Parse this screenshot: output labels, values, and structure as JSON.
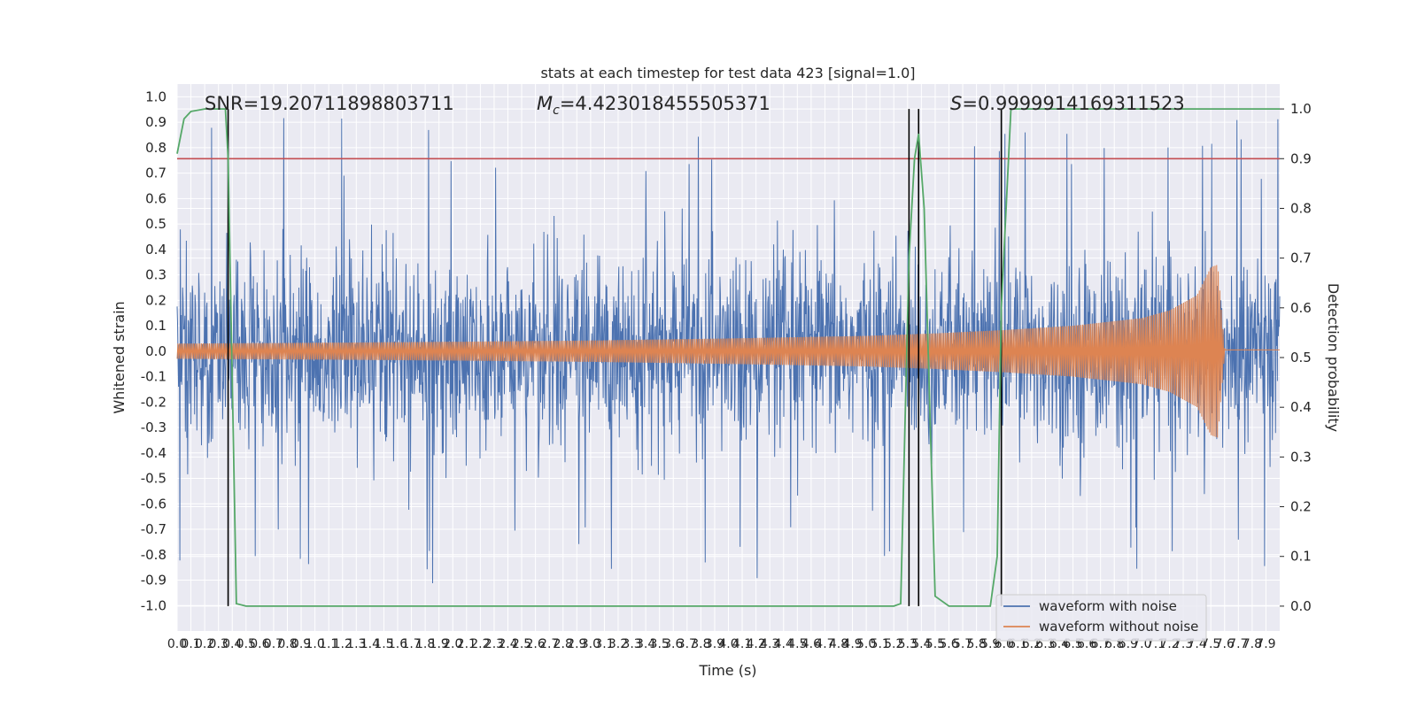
{
  "chart_data": {
    "type": "line",
    "title": "stats at each timestep for test data 423 [signal=1.0]",
    "xlabel": "Time (s)",
    "ylabel": "Whitened strain",
    "y2label": "Detection probability",
    "xlim": [
      0.0,
      8.0
    ],
    "ylim": [
      -1.1,
      1.05
    ],
    "y2lim": [
      -0.05,
      1.05
    ],
    "grid": true,
    "x_ticks": [
      "0.0",
      "0.1",
      "0.2",
      "0.3",
      "0.4",
      "0.5",
      "0.6",
      "0.7",
      "0.8",
      "0.9",
      "1.0",
      "1.1",
      "1.2",
      "1.3",
      "1.4",
      "1.5",
      "1.6",
      "1.7",
      "1.8",
      "1.9",
      "2.0",
      "2.1",
      "2.2",
      "2.3",
      "2.4",
      "2.5",
      "2.6",
      "2.7",
      "2.8",
      "2.9",
      "3.0",
      "3.1",
      "3.2",
      "3.3",
      "3.4",
      "3.5",
      "3.6",
      "3.7",
      "3.8",
      "3.9",
      "4.0",
      "4.1",
      "4.2",
      "4.3",
      "4.4",
      "4.5",
      "4.6",
      "4.7",
      "4.8",
      "4.9",
      "5.0",
      "5.1",
      "5.2",
      "5.3",
      "5.4",
      "5.5",
      "5.6",
      "5.7",
      "5.8",
      "5.9",
      "6.0",
      "6.1",
      "6.2",
      "6.3",
      "6.4",
      "6.5",
      "6.6",
      "6.7",
      "6.8",
      "6.9",
      "7.0",
      "7.1",
      "7.2",
      "7.3",
      "7.4",
      "7.5",
      "7.6",
      "7.7",
      "7.8",
      "7.9"
    ],
    "y_ticks": [
      "1.0",
      "0.9",
      "0.8",
      "0.7",
      "0.6",
      "0.5",
      "0.4",
      "0.3",
      "0.2",
      "0.1",
      "0.0",
      "-0.1",
      "-0.2",
      "-0.3",
      "-0.4",
      "-0.5",
      "-0.6",
      "-0.7",
      "-0.8",
      "-0.9",
      "-1.0"
    ],
    "y2_ticks": [
      "1.0",
      "0.9",
      "0.8",
      "0.7",
      "0.6",
      "0.5",
      "0.4",
      "0.3",
      "0.2",
      "0.1",
      "0.0"
    ],
    "annotations": {
      "snr": "SNR=19.20711898803711",
      "mc_symbol": "M",
      "mc_sub": "c",
      "mc_value": "=4.423018455505371",
      "s_symbol": "S",
      "s_value": "=0.9999914169311523"
    },
    "threshold": 0.9,
    "threshold_axis": "y2",
    "vlines_x": [
      0.37,
      5.31,
      5.38,
      5.98
    ],
    "legend": {
      "position": "lower right",
      "entries": [
        "waveform with noise",
        "waveform without noise"
      ]
    },
    "series": [
      {
        "name": "waveform with noise",
        "axis": "y1",
        "kind": "noisy_strain",
        "envelope_x": [
          0.0,
          8.0
        ],
        "envelope_typical": [
          0.45,
          0.45
        ],
        "envelope_peak": [
          0.92,
          0.92
        ]
      },
      {
        "name": "waveform without noise",
        "axis": "y1",
        "kind": "chirp",
        "envelope_x": [
          0.0,
          1.0,
          2.0,
          3.0,
          4.0,
          5.0,
          5.5,
          6.0,
          6.5,
          7.0,
          7.2,
          7.4,
          7.5,
          7.55,
          7.6,
          8.0
        ],
        "envelope_y": [
          0.03,
          0.033,
          0.037,
          0.042,
          0.05,
          0.06,
          0.07,
          0.083,
          0.1,
          0.13,
          0.16,
          0.22,
          0.33,
          0.34,
          0.01,
          0.01
        ],
        "end_time": 7.6
      },
      {
        "name": "detection probability",
        "axis": "y2",
        "kind": "line",
        "x": [
          0.0,
          0.05,
          0.1,
          0.2,
          0.35,
          0.37,
          0.43,
          0.5,
          5.2,
          5.25,
          5.31,
          5.35,
          5.38,
          5.42,
          5.5,
          5.6,
          5.9,
          5.95,
          5.98,
          6.05,
          8.0
        ],
        "y": [
          0.91,
          0.98,
          0.995,
          1.0,
          1.0,
          0.9,
          0.005,
          0.0,
          0.0,
          0.005,
          0.7,
          0.9,
          0.95,
          0.8,
          0.02,
          0.0,
          0.0,
          0.1,
          0.6,
          1.0,
          1.0
        ]
      }
    ],
    "colors": {
      "noise": "#4c72b0",
      "clean": "#dd8452",
      "prob": "#55a868",
      "threshold": "#c44e52",
      "vline": "#000000",
      "plot_bg": "#eaeaf2",
      "grid": "#ffffff"
    }
  }
}
